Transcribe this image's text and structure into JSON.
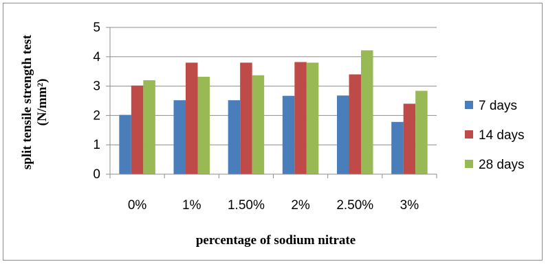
{
  "chart_data": {
    "type": "bar",
    "categories": [
      "0%",
      "1%",
      "1.50%",
      "2%",
      "2.50%",
      "3%"
    ],
    "series": [
      {
        "name": "7 days",
        "color": "#4a7ebb",
        "values": [
          2.02,
          2.52,
          2.52,
          2.67,
          2.68,
          1.78
        ]
      },
      {
        "name": "14 days",
        "color": "#be4b48",
        "values": [
          3.02,
          3.8,
          3.8,
          3.82,
          3.4,
          2.4
        ]
      },
      {
        "name": "28 days",
        "color": "#98b954",
        "values": [
          3.2,
          3.32,
          3.37,
          3.8,
          4.22,
          2.84
        ]
      }
    ],
    "xlabel": "percentage of  sodium nitrate",
    "ylabel_line1": "split tensile strength test",
    "ylabel_line2": "(N/mm²)",
    "ylim": [
      0,
      5
    ],
    "yticks": [
      0,
      1,
      2,
      3,
      4,
      5
    ],
    "grid": true,
    "legend_position": "right"
  }
}
